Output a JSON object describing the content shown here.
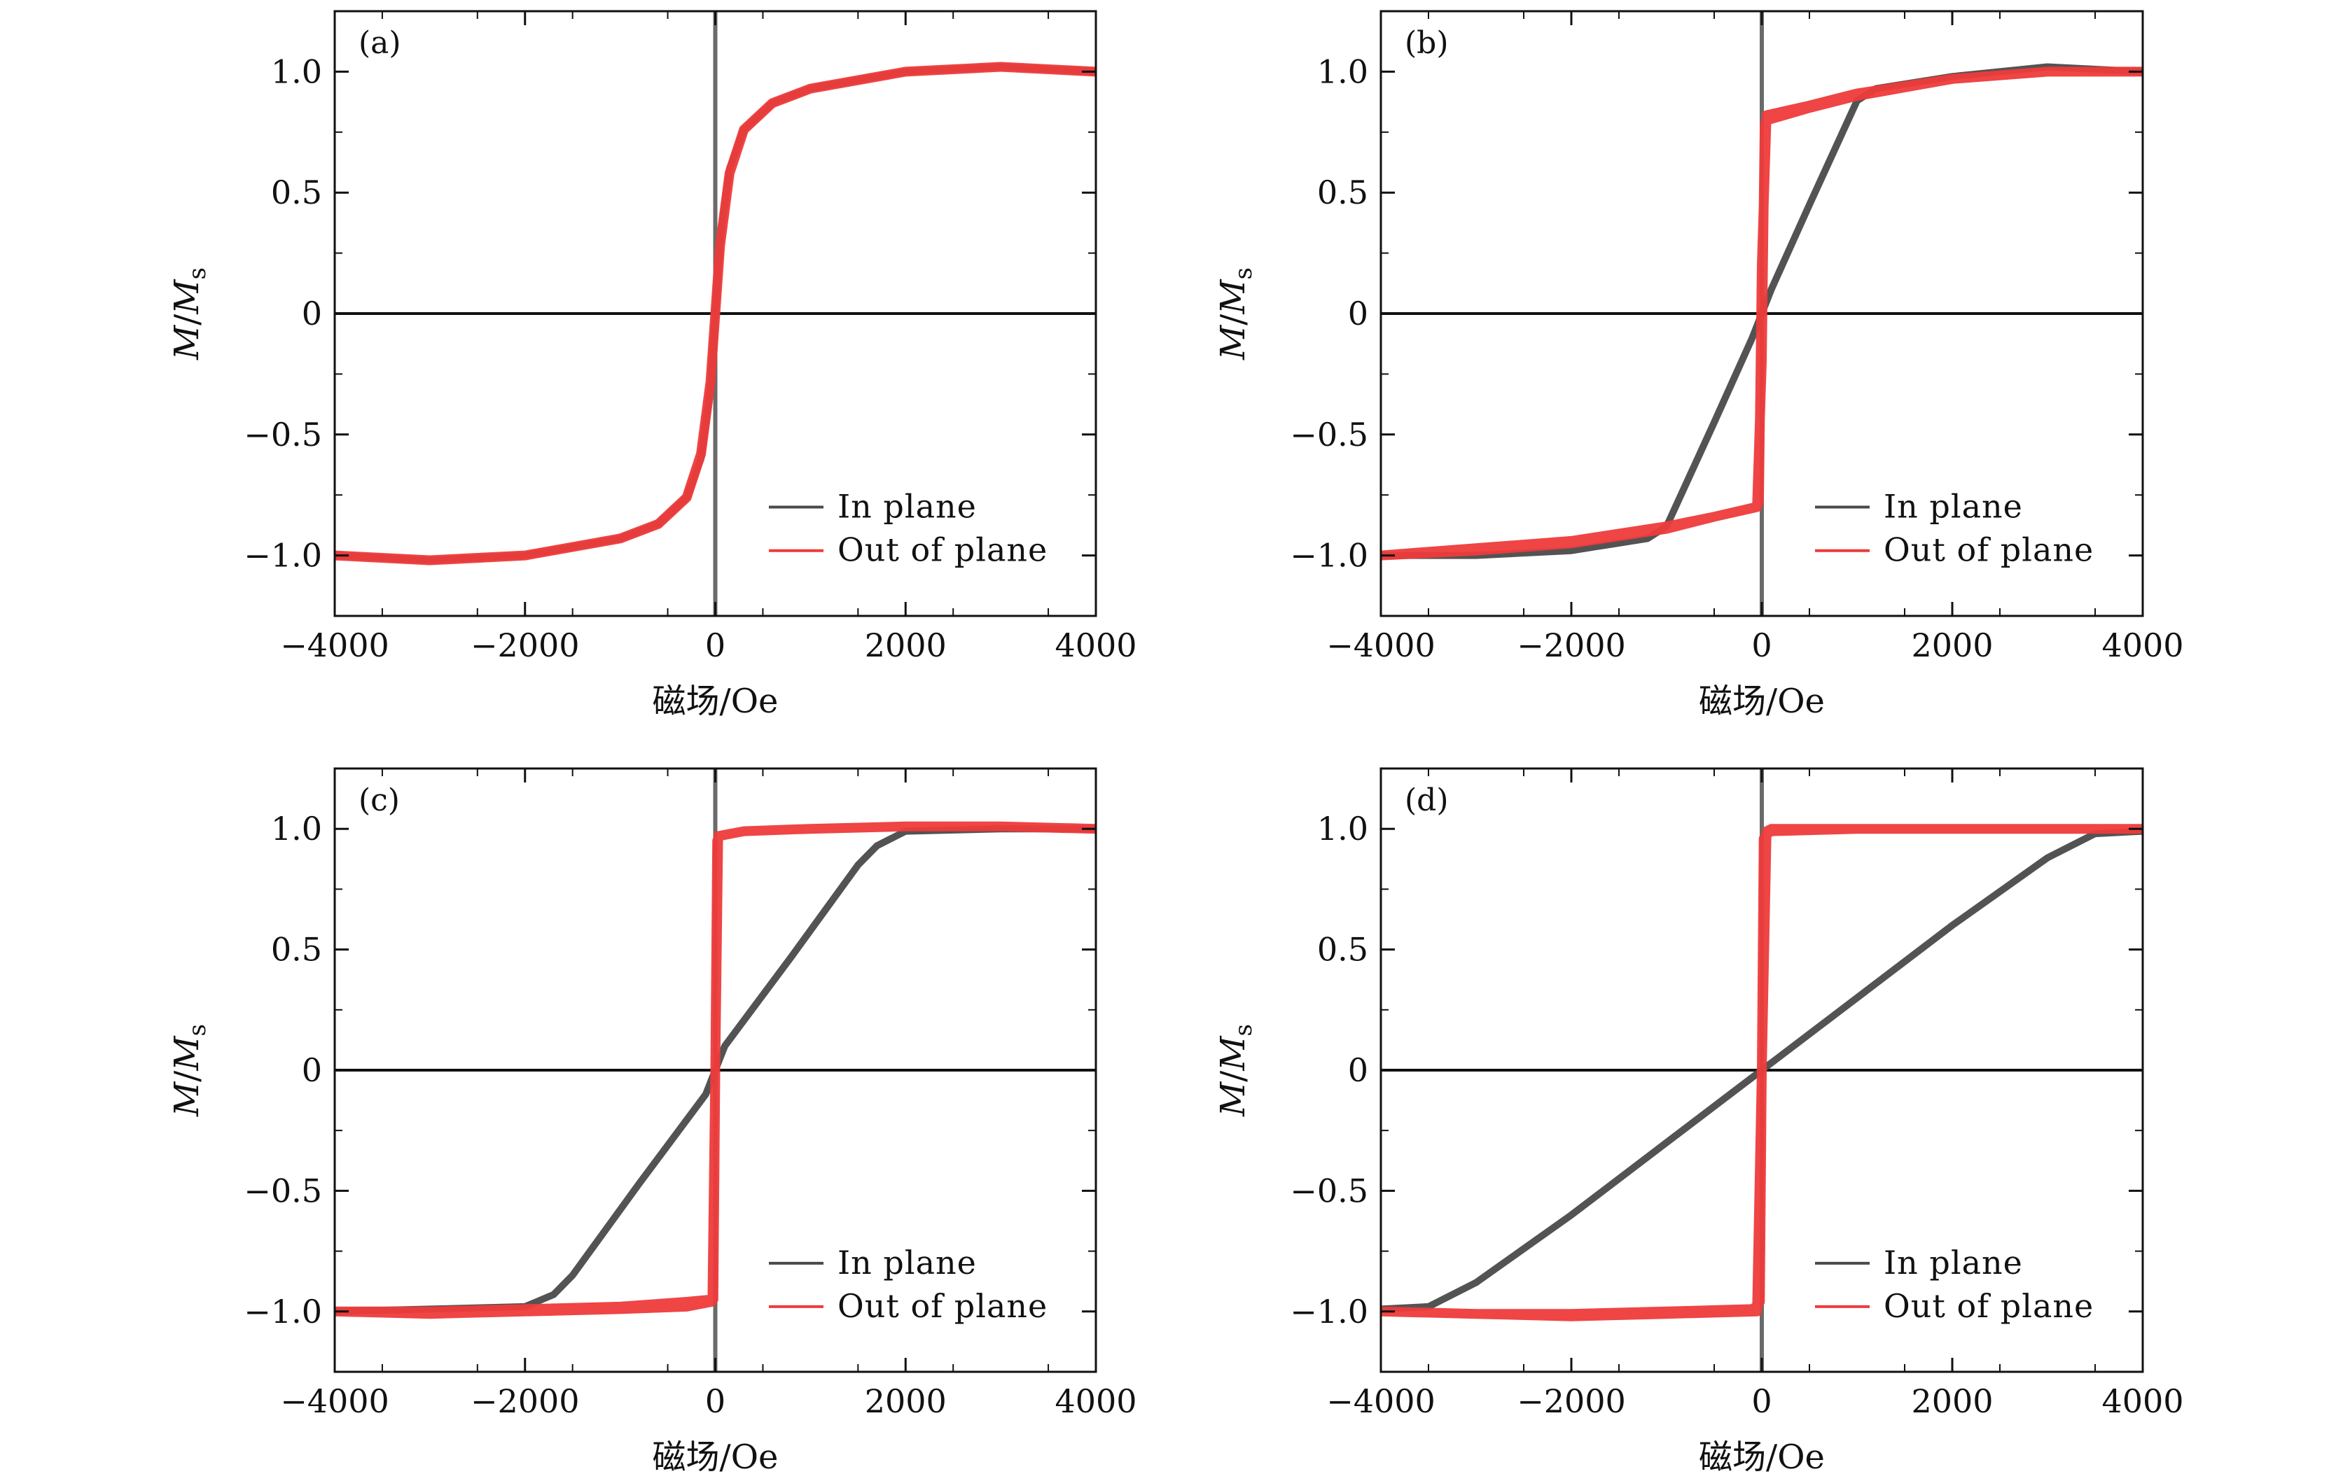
{
  "colors": {
    "in_plane": "#4a4a4a",
    "out_of_plane": "#ee3b3b",
    "axis": "#111111"
  },
  "chart_data": [
    {
      "type": "line",
      "panel": "(a)",
      "xlabel": "磁场/Oe",
      "ylabel_main": "M",
      "ylabel_sep": "/",
      "ylabel_sym": "M",
      "ylabel_sub": "s",
      "xlim": [
        -4000,
        4000
      ],
      "ylim": [
        -1.25,
        1.25
      ],
      "xticks": [
        -4000,
        -2000,
        0,
        2000,
        4000
      ],
      "xtick_labels": [
        "−4000",
        "−2000",
        "0",
        "2000",
        "4000"
      ],
      "yticks": [
        1.0,
        0.5,
        0,
        -0.5,
        -1.0
      ],
      "ytick_labels": [
        "1.0",
        "0.5",
        "0",
        "−0.5",
        "−1.0"
      ],
      "legend_position": "lower-right",
      "series": [
        {
          "name": "In plane",
          "color": "#4a4a4a",
          "width": 10,
          "x": [
            -4000,
            -3000,
            -2000,
            -1000,
            -600,
            -300,
            -150,
            -50,
            0,
            50,
            150,
            300,
            600,
            1000,
            2000,
            3000,
            4000
          ],
          "y": [
            -1.0,
            -1.02,
            -1.0,
            -0.93,
            -0.87,
            -0.76,
            -0.6,
            -0.3,
            0,
            0.3,
            0.6,
            0.76,
            0.87,
            0.93,
            1.0,
            1.02,
            1.0
          ]
        },
        {
          "name": "Out of plane",
          "color": "#ee3b3b",
          "width": 14,
          "x": [
            -4000,
            -3000,
            -2000,
            -1000,
            -600,
            -300,
            -150,
            -50,
            0,
            50,
            150,
            300,
            600,
            1000,
            2000,
            3000,
            4000
          ],
          "y": [
            -1.0,
            -1.02,
            -1.0,
            -0.93,
            -0.87,
            -0.76,
            -0.58,
            -0.28,
            0,
            0.28,
            0.58,
            0.76,
            0.87,
            0.93,
            1.0,
            1.02,
            1.0
          ]
        }
      ]
    },
    {
      "type": "line",
      "panel": "(b)",
      "xlabel": "磁场/Oe",
      "ylabel_main": "M",
      "ylabel_sep": "/",
      "ylabel_sym": "M",
      "ylabel_sub": "s",
      "xlim": [
        -4000,
        4000
      ],
      "ylim": [
        -1.25,
        1.25
      ],
      "xticks": [
        -4000,
        -2000,
        0,
        2000,
        4000
      ],
      "xtick_labels": [
        "−4000",
        "−2000",
        "0",
        "2000",
        "4000"
      ],
      "yticks": [
        1.0,
        0.5,
        0,
        -0.5,
        -1.0
      ],
      "ytick_labels": [
        "1.0",
        "0.5",
        "0",
        "−0.5",
        "−1.0"
      ],
      "legend_position": "lower-right",
      "series": [
        {
          "name": "In plane",
          "color": "#4a4a4a",
          "width": 10,
          "x": [
            -4000,
            -3000,
            -2000,
            -1200,
            -1000,
            -500,
            -100,
            0,
            100,
            500,
            1000,
            1200,
            2000,
            3000,
            4000
          ],
          "y": [
            -1.0,
            -1.0,
            -0.98,
            -0.93,
            -0.88,
            -0.45,
            -0.1,
            0,
            0.1,
            0.45,
            0.88,
            0.93,
            0.98,
            1.02,
            1.0
          ]
        },
        {
          "name": "Out of plane",
          "color": "#ee3b3b",
          "width": 14,
          "x": [
            -4000,
            -3000,
            -2000,
            -1000,
            -500,
            -50,
            0,
            30,
            60,
            500,
            1000,
            2000,
            3000,
            4000,
            3000,
            2000,
            1000,
            500,
            50,
            0,
            -30,
            -60,
            -500,
            -1000,
            -2000,
            -3000,
            -4000
          ],
          "y": [
            -1.0,
            -0.98,
            -0.95,
            -0.89,
            -0.84,
            -0.8,
            -0.2,
            0.78,
            0.8,
            0.85,
            0.9,
            0.97,
            1.0,
            1.0,
            1.0,
            0.97,
            0.91,
            0.86,
            0.82,
            0.2,
            -0.78,
            -0.8,
            -0.84,
            -0.88,
            -0.94,
            -0.97,
            -1.0
          ]
        }
      ]
    },
    {
      "type": "line",
      "panel": "(c)",
      "xlabel": "磁场/Oe",
      "ylabel_main": "M",
      "ylabel_sep": "/",
      "ylabel_sym": "M",
      "ylabel_sub": "s",
      "xlim": [
        -4000,
        4000
      ],
      "ylim": [
        -1.25,
        1.25
      ],
      "xticks": [
        -4000,
        -2000,
        0,
        2000,
        4000
      ],
      "xtick_labels": [
        "−4000",
        "−2000",
        "0",
        "2000",
        "4000"
      ],
      "yticks": [
        1.0,
        0.5,
        0,
        -0.5,
        -1.0
      ],
      "ytick_labels": [
        "1.0",
        "0.5",
        "0",
        "−0.5",
        "−1.0"
      ],
      "legend_position": "lower-right",
      "series": [
        {
          "name": "In plane",
          "color": "#4a4a4a",
          "width": 10,
          "x": [
            -4000,
            -3000,
            -2000,
            -1700,
            -1500,
            -800,
            -100,
            0,
            100,
            800,
            1500,
            1700,
            2000,
            3000,
            4000
          ],
          "y": [
            -1.0,
            -0.99,
            -0.98,
            -0.93,
            -0.85,
            -0.47,
            -0.1,
            0,
            0.1,
            0.47,
            0.85,
            0.93,
            0.99,
            1.0,
            1.0
          ]
        },
        {
          "name": "Out of plane",
          "color": "#ee3b3b",
          "width": 14,
          "x": [
            -4000,
            -3000,
            -2000,
            -1000,
            -300,
            -30,
            0,
            20,
            40,
            300,
            1000,
            2000,
            3000,
            4000,
            3000,
            2000,
            1000,
            300,
            30,
            0,
            -20,
            -40,
            -300,
            -1000,
            -2000,
            -3000,
            -4000
          ],
          "y": [
            -1.0,
            -1.0,
            -0.99,
            -0.98,
            -0.96,
            -0.95,
            0,
            0.95,
            0.97,
            0.99,
            1.0,
            1.01,
            1.01,
            1.0,
            1.01,
            1.01,
            1.0,
            0.99,
            0.97,
            0,
            -0.95,
            -0.96,
            -0.98,
            -0.99,
            -1.0,
            -1.01,
            -1.0
          ]
        }
      ]
    },
    {
      "type": "line",
      "panel": "(d)",
      "xlabel": "磁场/Oe",
      "ylabel_main": "M",
      "ylabel_sep": "/",
      "ylabel_sym": "M",
      "ylabel_sub": "s",
      "xlim": [
        -4000,
        4000
      ],
      "ylim": [
        -1.25,
        1.25
      ],
      "xticks": [
        -4000,
        -2000,
        0,
        2000,
        4000
      ],
      "xtick_labels": [
        "−4000",
        "−2000",
        "0",
        "2000",
        "4000"
      ],
      "yticks": [
        1.0,
        0.5,
        0,
        -0.5,
        -1.0
      ],
      "ytick_labels": [
        "1.0",
        "0.5",
        "0",
        "−0.5",
        "−1.0"
      ],
      "legend_position": "lower-right",
      "series": [
        {
          "name": "In plane",
          "color": "#4a4a4a",
          "width": 10,
          "x": [
            -4000,
            -3500,
            -3000,
            -2000,
            -1000,
            0,
            1000,
            2000,
            3000,
            3500,
            4000
          ],
          "y": [
            -0.99,
            -0.98,
            -0.88,
            -0.6,
            -0.3,
            0,
            0.3,
            0.6,
            0.88,
            0.98,
            0.99
          ]
        },
        {
          "name": "Out of plane",
          "color": "#ee3b3b",
          "width": 14,
          "x": [
            -4000,
            -3000,
            -2000,
            -1000,
            -50,
            0,
            20,
            60,
            100,
            1000,
            2000,
            3000,
            4000,
            3000,
            2000,
            1000,
            100,
            50,
            0,
            -20,
            -60,
            -100,
            -1000,
            -2000,
            -3000,
            -4000
          ],
          "y": [
            -1.0,
            -1.01,
            -1.02,
            -1.01,
            -1.0,
            0,
            0.96,
            0.98,
            0.99,
            1.0,
            1.0,
            1.0,
            1.0,
            1.0,
            1.0,
            1.0,
            1.0,
            0.99,
            0,
            -0.96,
            -0.98,
            -0.99,
            -1.0,
            -1.01,
            -1.01,
            -1.0
          ]
        }
      ]
    }
  ]
}
